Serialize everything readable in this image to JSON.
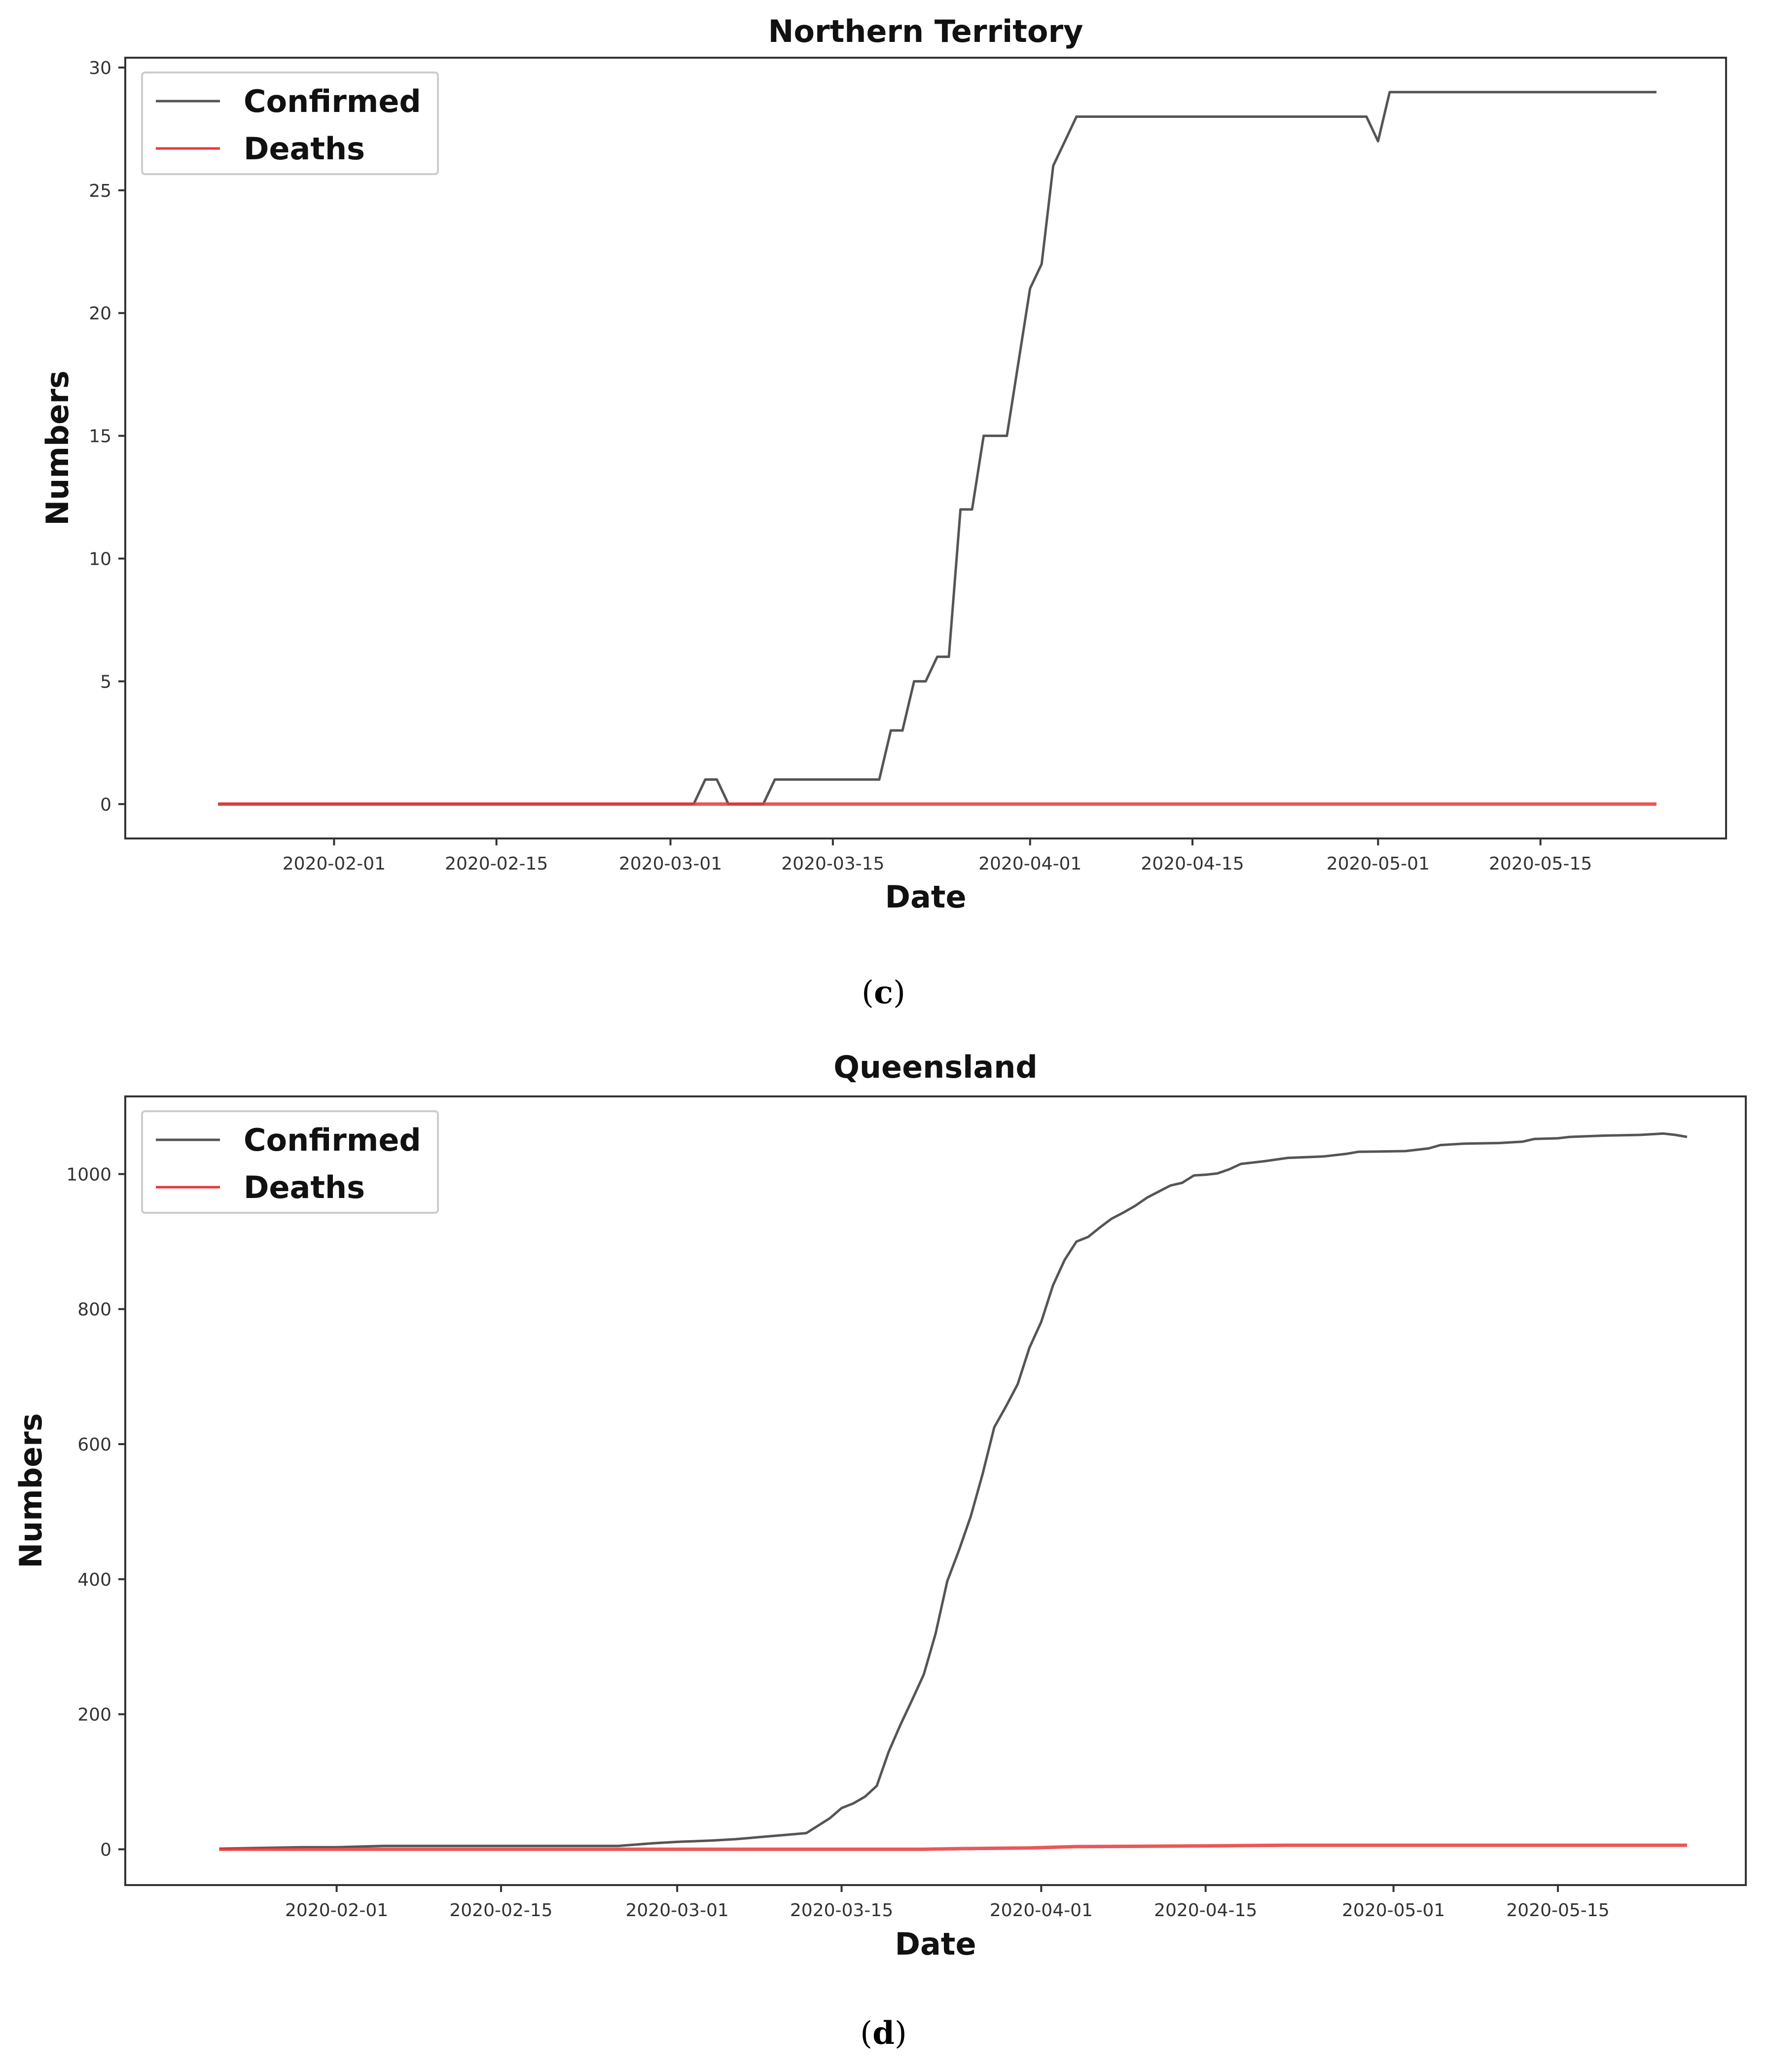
{
  "captions": {
    "c": "c",
    "d": "d"
  },
  "chart_data": [
    {
      "type": "line",
      "title": "Northern Territory",
      "xlabel": "Date",
      "ylabel": "Numbers",
      "x_range": [
        "2020-01-14",
        "2020-05-31"
      ],
      "ylim": [
        -1.4,
        30.4
      ],
      "y_ticks": [
        0,
        5,
        10,
        15,
        20,
        25,
        30
      ],
      "x_ticks": [
        "2020-02-01",
        "2020-02-15",
        "2020-03-01",
        "2020-03-15",
        "2020-04-01",
        "2020-04-15",
        "2020-05-01",
        "2020-05-15"
      ],
      "grid": false,
      "legend_position": "top-left",
      "series": [
        {
          "name": "Confirmed",
          "color": "#555555",
          "points": [
            [
              "2020-01-22",
              0
            ],
            [
              "2020-03-03",
              0
            ],
            [
              "2020-03-04",
              1
            ],
            [
              "2020-03-05",
              1
            ],
            [
              "2020-03-06",
              0
            ],
            [
              "2020-03-09",
              0
            ],
            [
              "2020-03-10",
              1
            ],
            [
              "2020-03-19",
              1
            ],
            [
              "2020-03-20",
              3
            ],
            [
              "2020-03-21",
              3
            ],
            [
              "2020-03-22",
              5
            ],
            [
              "2020-03-23",
              5
            ],
            [
              "2020-03-24",
              6
            ],
            [
              "2020-03-25",
              6
            ],
            [
              "2020-03-26",
              12
            ],
            [
              "2020-03-27",
              12
            ],
            [
              "2020-03-28",
              15
            ],
            [
              "2020-03-30",
              15
            ],
            [
              "2020-03-31",
              18
            ],
            [
              "2020-04-01",
              21
            ],
            [
              "2020-04-02",
              22
            ],
            [
              "2020-04-03",
              26
            ],
            [
              "2020-04-04",
              27
            ],
            [
              "2020-04-05",
              28
            ],
            [
              "2020-04-30",
              28
            ],
            [
              "2020-05-01",
              27
            ],
            [
              "2020-05-02",
              29
            ],
            [
              "2020-05-25",
              29
            ]
          ]
        },
        {
          "name": "Deaths",
          "color": "#e8393c",
          "points": [
            [
              "2020-01-22",
              0
            ],
            [
              "2020-05-25",
              0
            ]
          ]
        }
      ]
    },
    {
      "type": "line",
      "title": "Queensland",
      "xlabel": "Date",
      "ylabel": "Numbers",
      "x_range": [
        "2020-01-14",
        "2020-05-31"
      ],
      "ylim": [
        -53,
        1115
      ],
      "y_ticks": [
        0,
        200,
        400,
        600,
        800,
        1000
      ],
      "x_ticks": [
        "2020-02-01",
        "2020-02-15",
        "2020-03-01",
        "2020-03-15",
        "2020-04-01",
        "2020-04-15",
        "2020-05-01",
        "2020-05-15"
      ],
      "grid": false,
      "legend_position": "top-left",
      "series": [
        {
          "name": "Confirmed",
          "color": "#555555",
          "points": [
            [
              "2020-01-22",
              1
            ],
            [
              "2020-01-29",
              3
            ],
            [
              "2020-02-01",
              3
            ],
            [
              "2020-02-05",
              5
            ],
            [
              "2020-02-25",
              5
            ],
            [
              "2020-02-28",
              9
            ],
            [
              "2020-03-01",
              11
            ],
            [
              "2020-03-04",
              13
            ],
            [
              "2020-03-06",
              15
            ],
            [
              "2020-03-08",
              18
            ],
            [
              "2020-03-10",
              21
            ],
            [
              "2020-03-12",
              24
            ],
            [
              "2020-03-13",
              35
            ],
            [
              "2020-03-14",
              46
            ],
            [
              "2020-03-15",
              61
            ],
            [
              "2020-03-16",
              68
            ],
            [
              "2020-03-17",
              78
            ],
            [
              "2020-03-18",
              94
            ],
            [
              "2020-03-19",
              144
            ],
            [
              "2020-03-20",
              184
            ],
            [
              "2020-03-21",
              221
            ],
            [
              "2020-03-22",
              259
            ],
            [
              "2020-03-23",
              319
            ],
            [
              "2020-03-24",
              397
            ],
            [
              "2020-03-25",
              443
            ],
            [
              "2020-03-26",
              493
            ],
            [
              "2020-03-27",
              555
            ],
            [
              "2020-03-28",
              625
            ],
            [
              "2020-03-29",
              656
            ],
            [
              "2020-03-30",
              689
            ],
            [
              "2020-03-31",
              743
            ],
            [
              "2020-04-01",
              781
            ],
            [
              "2020-04-02",
              835
            ],
            [
              "2020-04-03",
              873
            ],
            [
              "2020-04-04",
              900
            ],
            [
              "2020-04-05",
              907
            ],
            [
              "2020-04-06",
              921
            ],
            [
              "2020-04-07",
              934
            ],
            [
              "2020-04-08",
              943
            ],
            [
              "2020-04-09",
              953
            ],
            [
              "2020-04-10",
              965
            ],
            [
              "2020-04-11",
              974
            ],
            [
              "2020-04-12",
              983
            ],
            [
              "2020-04-13",
              987
            ],
            [
              "2020-04-14",
              998
            ],
            [
              "2020-04-15",
              999
            ],
            [
              "2020-04-16",
              1001
            ],
            [
              "2020-04-17",
              1007
            ],
            [
              "2020-04-18",
              1015
            ],
            [
              "2020-04-20",
              1019
            ],
            [
              "2020-04-22",
              1024
            ],
            [
              "2020-04-25",
              1026
            ],
            [
              "2020-04-27",
              1030
            ],
            [
              "2020-04-28",
              1033
            ],
            [
              "2020-05-02",
              1034
            ],
            [
              "2020-05-04",
              1038
            ],
            [
              "2020-05-05",
              1043
            ],
            [
              "2020-05-07",
              1045
            ],
            [
              "2020-05-10",
              1046
            ],
            [
              "2020-05-12",
              1048
            ],
            [
              "2020-05-13",
              1052
            ],
            [
              "2020-05-15",
              1053
            ],
            [
              "2020-05-16",
              1055
            ],
            [
              "2020-05-19",
              1057
            ],
            [
              "2020-05-22",
              1058
            ],
            [
              "2020-05-24",
              1060
            ],
            [
              "2020-05-25",
              1058
            ],
            [
              "2020-05-26",
              1055
            ]
          ]
        },
        {
          "name": "Deaths",
          "color": "#e8393c",
          "points": [
            [
              "2020-01-22",
              0
            ],
            [
              "2020-03-22",
              0
            ],
            [
              "2020-03-25",
              1
            ],
            [
              "2020-03-31",
              2
            ],
            [
              "2020-04-04",
              4
            ],
            [
              "2020-04-15",
              5
            ],
            [
              "2020-04-22",
              6
            ],
            [
              "2020-05-26",
              6
            ]
          ]
        }
      ]
    }
  ]
}
